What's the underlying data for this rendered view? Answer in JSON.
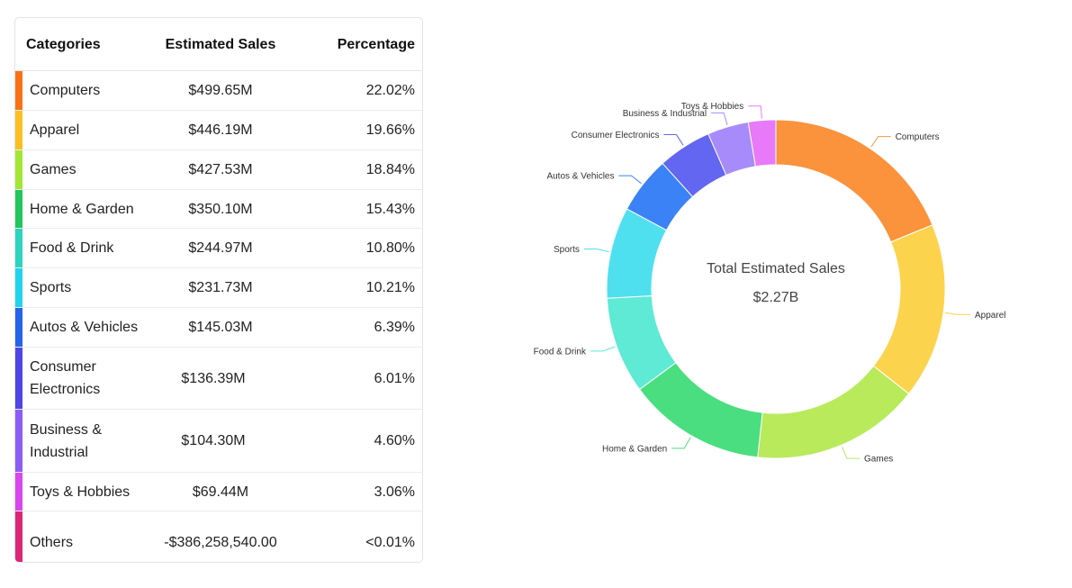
{
  "table": {
    "headers": {
      "category": "Categories",
      "sales": "Estimated Sales",
      "percentage": "Percentage"
    },
    "rows": [
      {
        "category": "Computers",
        "sales": "$499.65M",
        "percentage": "22.02%",
        "color": "#f97316"
      },
      {
        "category": "Apparel",
        "sales": "$446.19M",
        "percentage": "19.66%",
        "color": "#fbbf24"
      },
      {
        "category": "Games",
        "sales": "$427.53M",
        "percentage": "18.84%",
        "color": "#a3e635"
      },
      {
        "category": "Home & Garden",
        "sales": "$350.10M",
        "percentage": "15.43%",
        "color": "#22c55e"
      },
      {
        "category": "Food & Drink",
        "sales": "$244.97M",
        "percentage": "10.80%",
        "color": "#2dd4bf"
      },
      {
        "category": "Sports",
        "sales": "$231.73M",
        "percentage": "10.21%",
        "color": "#22d3ee"
      },
      {
        "category": "Autos & Vehicles",
        "sales": "$145.03M",
        "percentage": "6.39%",
        "color": "#2563eb"
      },
      {
        "category": "Consumer Electronics",
        "sales": "$136.39M",
        "percentage": "6.01%",
        "color": "#4f46e5"
      },
      {
        "category": "Business & Industrial",
        "sales": "$104.30M",
        "percentage": "4.60%",
        "color": "#8b5cf6"
      },
      {
        "category": "Toys & Hobbies",
        "sales": "$69.44M",
        "percentage": "3.06%",
        "color": "#d946ef"
      },
      {
        "category": "Others",
        "sales": "-$386,258,540.00",
        "percentage": "<0.01%",
        "color": "#db2777"
      }
    ]
  },
  "chart_data": {
    "type": "pie",
    "center_title": "Total Estimated Sales",
    "center_value": "$2.27B",
    "slices": [
      {
        "label": "Computers",
        "value": 22.02,
        "color": "#fb923c"
      },
      {
        "label": "Apparel",
        "value": 19.66,
        "color": "#fcd34d"
      },
      {
        "label": "Games",
        "value": 18.84,
        "color": "#b9ea5c"
      },
      {
        "label": "Home & Garden",
        "value": 15.43,
        "color": "#4ade80"
      },
      {
        "label": "Food & Drink",
        "value": 10.8,
        "color": "#5eead4"
      },
      {
        "label": "Sports",
        "value": 10.21,
        "color": "#4fe0f0"
      },
      {
        "label": "Autos & Vehicles",
        "value": 6.39,
        "color": "#3b82f6"
      },
      {
        "label": "Consumer Electronics",
        "value": 6.01,
        "color": "#6366f1"
      },
      {
        "label": "Business & Industrial",
        "value": 4.6,
        "color": "#a78bfa"
      },
      {
        "label": "Toys & Hobbies",
        "value": 3.06,
        "color": "#e879f9"
      }
    ]
  }
}
